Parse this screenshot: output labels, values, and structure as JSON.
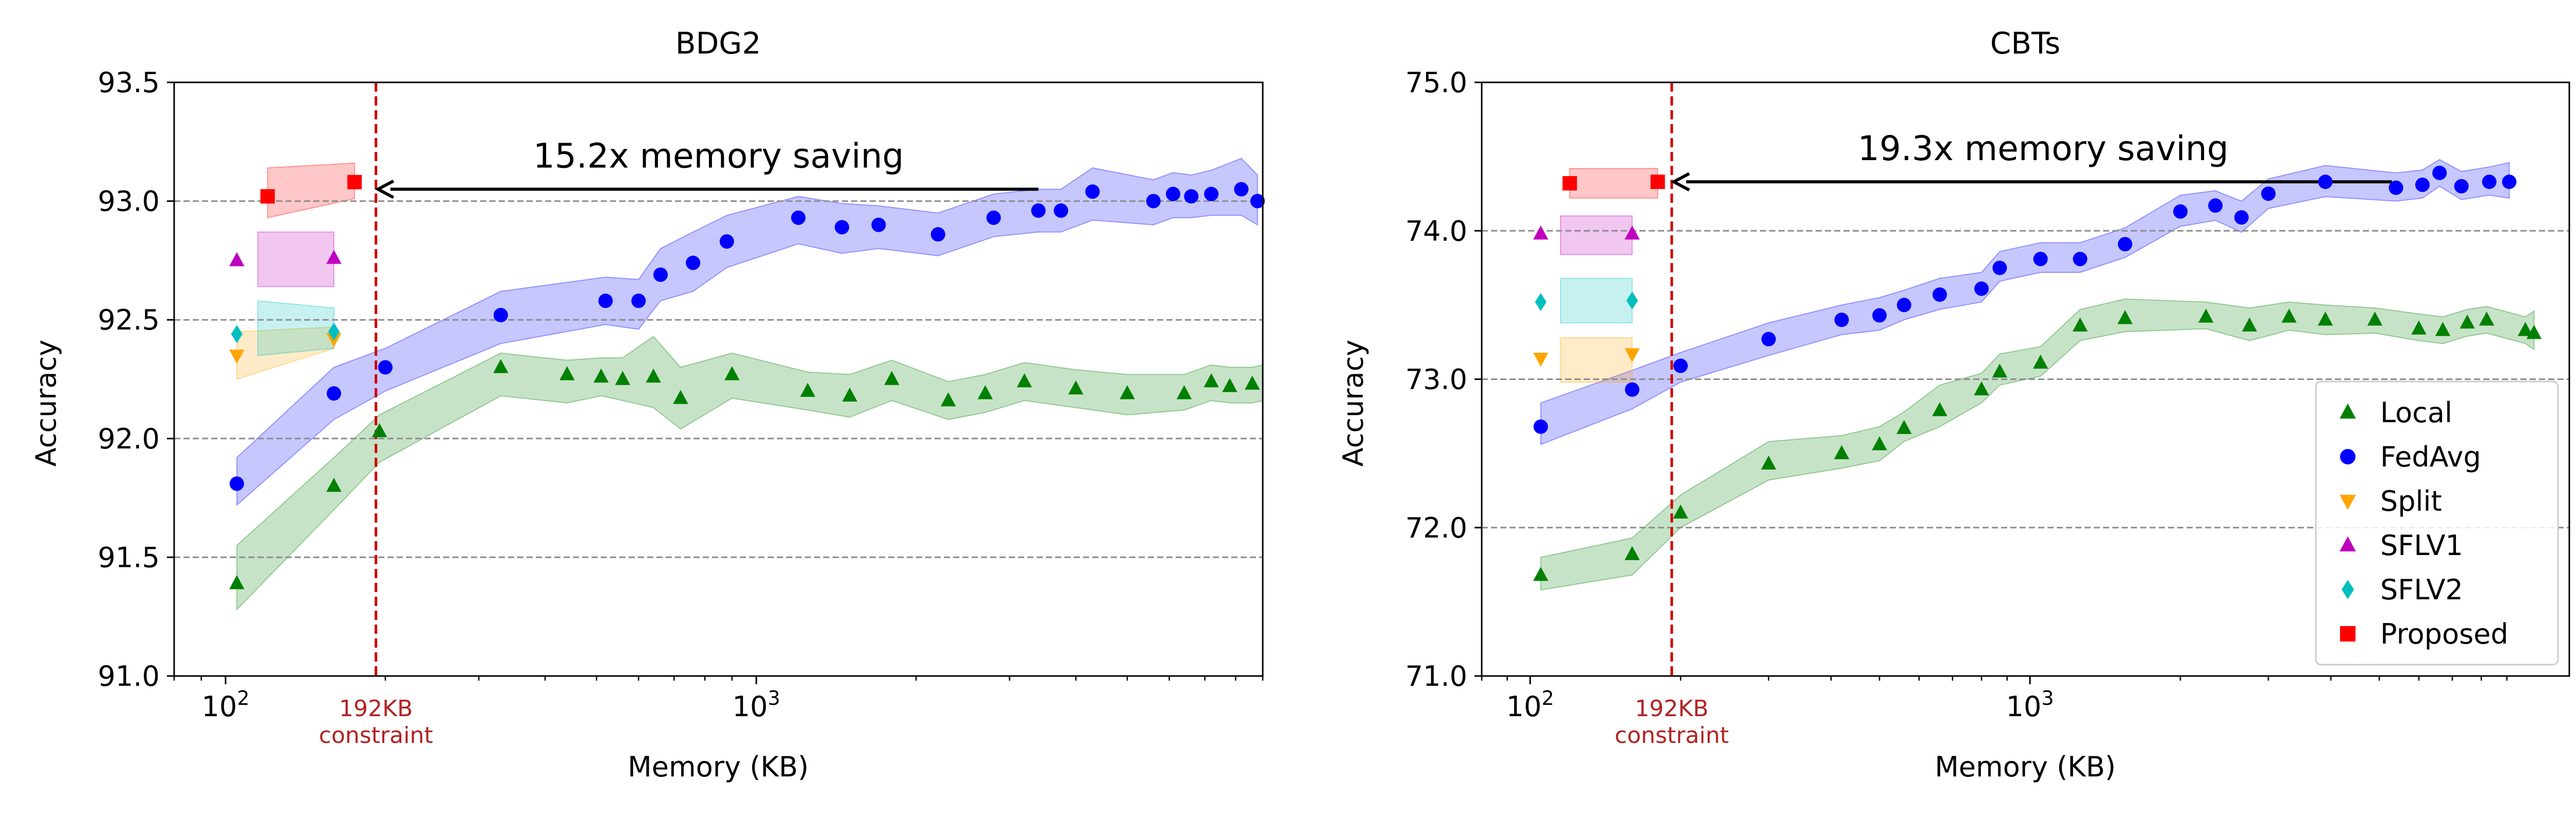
{
  "chart_data": [
    {
      "type": "scatter",
      "title": "BDG2",
      "xlabel": "Memory (KB)",
      "ylabel": "Accuracy",
      "xscale": "log",
      "xlim": [
        80,
        9000
      ],
      "ylim": [
        91.0,
        93.5
      ],
      "yticks": [
        91.0,
        91.5,
        92.0,
        92.5,
        93.0,
        93.5
      ],
      "ytick_labels": [
        "91.0",
        "91.5",
        "92.0",
        "92.5",
        "93.0",
        "93.5"
      ],
      "xticks": [
        {
          "value": 100,
          "base": "10",
          "exp": "2"
        },
        {
          "value": 1000,
          "base": "10",
          "exp": "3"
        }
      ],
      "grid": "horizontal dashed",
      "constraint": {
        "x": 192,
        "label_line1": "192KB",
        "label_line2": "constraint"
      },
      "annotation": {
        "text": "15.2x memory saving",
        "from_x": 3400,
        "to_x": 192,
        "y": 93.05
      },
      "series": [
        {
          "name": "Local",
          "key": "local",
          "color": "#008000",
          "marker": "triangle-up",
          "x": [
            105,
            160,
            195,
            330,
            440,
            510,
            560,
            640,
            720,
            900,
            1250,
            1500,
            1800,
            2300,
            2700,
            3200,
            4000,
            5000,
            6400,
            7200,
            7800,
            8600,
            9400,
            10200
          ],
          "y": [
            91.39,
            91.8,
            92.03,
            92.3,
            92.27,
            92.26,
            92.25,
            92.26,
            92.17,
            92.27,
            92.2,
            92.18,
            92.25,
            92.16,
            92.19,
            92.24,
            92.21,
            92.19,
            92.19,
            92.24,
            92.22,
            92.23,
            92.23,
            92.22
          ],
          "band_x": [
            105,
            160,
            195,
            330,
            440,
            510,
            560,
            640,
            720,
            900,
            1250,
            1500,
            1800,
            2300,
            2700,
            3200,
            4000,
            5000,
            6400,
            7200,
            7800,
            8600,
            9400,
            10200
          ],
          "band_lo": [
            91.28,
            91.7,
            91.9,
            92.18,
            92.15,
            92.18,
            92.16,
            92.13,
            92.04,
            92.17,
            92.12,
            92.09,
            92.16,
            92.08,
            92.11,
            92.16,
            92.13,
            92.1,
            92.12,
            92.16,
            92.15,
            92.15,
            92.16,
            92.14
          ],
          "band_hi": [
            91.55,
            91.92,
            92.1,
            92.36,
            92.33,
            92.34,
            92.34,
            92.43,
            92.3,
            92.36,
            92.28,
            92.27,
            92.33,
            92.24,
            92.27,
            92.32,
            92.29,
            92.27,
            92.27,
            92.31,
            92.3,
            92.3,
            92.31,
            92.3
          ]
        },
        {
          "name": "FedAvg",
          "key": "fedavg",
          "color": "#0000ff",
          "marker": "circle",
          "x": [
            105,
            160,
            200,
            330,
            520,
            600,
            660,
            760,
            880,
            1200,
            1450,
            1700,
            2200,
            2800,
            3400,
            3750,
            4300,
            5600,
            6100,
            6600,
            7200,
            8200,
            8800
          ],
          "y": [
            91.81,
            92.19,
            92.3,
            92.52,
            92.58,
            92.58,
            92.69,
            92.74,
            92.83,
            92.93,
            92.89,
            92.9,
            92.86,
            92.93,
            92.96,
            92.96,
            93.04,
            93.0,
            93.03,
            93.02,
            93.03,
            93.05,
            93.0
          ],
          "band_x": [
            105,
            160,
            200,
            330,
            520,
            600,
            660,
            760,
            880,
            1200,
            1450,
            1700,
            2200,
            2800,
            3400,
            3750,
            4300,
            5600,
            6100,
            6600,
            7200,
            8200,
            8800
          ],
          "band_lo": [
            91.72,
            92.08,
            92.2,
            92.4,
            92.48,
            92.46,
            92.58,
            92.62,
            92.72,
            92.82,
            92.78,
            92.8,
            92.77,
            92.85,
            92.87,
            92.87,
            92.92,
            92.9,
            92.93,
            92.93,
            92.94,
            92.94,
            92.9
          ],
          "band_hi": [
            91.92,
            92.3,
            92.38,
            92.62,
            92.68,
            92.67,
            92.8,
            92.87,
            92.94,
            93.02,
            92.99,
            92.98,
            92.95,
            93.03,
            93.05,
            93.05,
            93.14,
            93.09,
            93.12,
            93.11,
            93.13,
            93.18,
            93.11
          ]
        },
        {
          "name": "Split",
          "key": "split",
          "color": "#ffa500",
          "marker": "triangle-down",
          "x": [
            105,
            160
          ],
          "y": [
            92.35,
            92.42
          ],
          "band_x": [
            105,
            160
          ],
          "band_lo": [
            92.25,
            92.38
          ],
          "band_hi": [
            92.45,
            92.47
          ]
        },
        {
          "name": "SFLV1",
          "key": "sflv1",
          "color": "#bf00bf",
          "marker": "triangle-up",
          "x": [
            105,
            160
          ],
          "y": [
            92.75,
            92.76
          ],
          "band_x": [
            115,
            160
          ],
          "band_lo": [
            92.64,
            92.64
          ],
          "band_hi": [
            92.87,
            92.87
          ]
        },
        {
          "name": "SFLV2",
          "key": "sflv2",
          "color": "#00bfbf",
          "marker": "diamond",
          "x": [
            105,
            160
          ],
          "y": [
            92.44,
            92.45
          ],
          "band_x": [
            115,
            160
          ],
          "band_lo": [
            92.35,
            92.38
          ],
          "band_hi": [
            92.58,
            92.55
          ]
        },
        {
          "name": "Proposed",
          "key": "proposed",
          "color": "#ff0000",
          "marker": "square",
          "x": [
            120,
            175
          ],
          "y": [
            93.02,
            93.08
          ],
          "band_x": [
            120,
            175
          ],
          "band_lo": [
            92.93,
            93.01
          ],
          "band_hi": [
            93.14,
            93.16
          ]
        }
      ]
    },
    {
      "type": "scatter",
      "title": "CBTs",
      "xlabel": "Memory (KB)",
      "ylabel": "Accuracy",
      "xscale": "log",
      "xlim": [
        80,
        12000
      ],
      "ylim": [
        71.0,
        75.0
      ],
      "yticks": [
        71.0,
        72.0,
        73.0,
        74.0,
        75.0
      ],
      "ytick_labels": [
        "71.0",
        "72.0",
        "73.0",
        "74.0",
        "75.0"
      ],
      "xticks": [
        {
          "value": 100,
          "base": "10",
          "exp": "2"
        },
        {
          "value": 1000,
          "base": "10",
          "exp": "3"
        }
      ],
      "grid": "horizontal dashed",
      "constraint": {
        "x": 192,
        "label_line1": "192KB",
        "label_line2": "constraint"
      },
      "annotation": {
        "text": "19.3x memory saving",
        "from_x": 5300,
        "to_x": 192,
        "y": 74.33
      },
      "legend_position": "lower right",
      "series": [
        {
          "name": "Local",
          "key": "local",
          "color": "#008000",
          "marker": "triangle-up",
          "x": [
            105,
            160,
            200,
            300,
            420,
            500,
            560,
            660,
            800,
            870,
            1050,
            1260,
            1550,
            2250,
            2750,
            3300,
            3900,
            4900,
            6000,
            6700,
            7500,
            8200,
            9800,
            10200
          ],
          "y": [
            71.68,
            71.82,
            72.1,
            72.43,
            72.5,
            72.56,
            72.67,
            72.79,
            72.93,
            73.05,
            73.11,
            73.36,
            73.41,
            73.42,
            73.36,
            73.42,
            73.4,
            73.4,
            73.34,
            73.33,
            73.38,
            73.4,
            73.33,
            73.31
          ],
          "band_x": [
            105,
            160,
            200,
            300,
            420,
            500,
            560,
            660,
            800,
            870,
            1050,
            1260,
            1550,
            2250,
            2750,
            3300,
            3900,
            4900,
            6000,
            6700,
            7500,
            8200,
            9800,
            10200
          ],
          "band_lo": [
            71.58,
            71.68,
            72.0,
            72.32,
            72.4,
            72.45,
            72.58,
            72.68,
            72.84,
            72.96,
            73.02,
            73.26,
            73.32,
            73.34,
            73.26,
            73.33,
            73.3,
            73.31,
            73.26,
            73.24,
            73.29,
            73.31,
            73.24,
            73.2
          ],
          "band_hi": [
            71.8,
            71.93,
            72.22,
            72.58,
            72.62,
            72.68,
            72.78,
            72.96,
            73.04,
            73.17,
            73.22,
            73.47,
            73.54,
            73.52,
            73.48,
            73.52,
            73.5,
            73.48,
            73.44,
            73.42,
            73.47,
            73.49,
            73.42,
            73.46
          ]
        },
        {
          "name": "FedAvg",
          "key": "fedavg",
          "color": "#0000ff",
          "marker": "circle",
          "x": [
            105,
            160,
            200,
            300,
            420,
            500,
            560,
            660,
            800,
            870,
            1050,
            1260,
            1550,
            2000,
            2350,
            2650,
            3000,
            3900,
            5400,
            6100,
            6600,
            7300,
            8300,
            9100
          ],
          "y": [
            72.68,
            72.93,
            73.09,
            73.27,
            73.4,
            73.43,
            73.5,
            73.57,
            73.61,
            73.75,
            73.81,
            73.81,
            73.91,
            74.13,
            74.17,
            74.09,
            74.25,
            74.33,
            74.29,
            74.31,
            74.39,
            74.3,
            74.33,
            74.33
          ],
          "band_x": [
            105,
            160,
            200,
            300,
            420,
            500,
            560,
            660,
            800,
            870,
            1050,
            1260,
            1550,
            2000,
            2350,
            2650,
            3000,
            3900,
            5400,
            6100,
            6600,
            7300,
            8300,
            9100
          ],
          "band_lo": [
            72.56,
            72.8,
            72.98,
            73.16,
            73.3,
            73.33,
            73.4,
            73.47,
            73.52,
            73.66,
            73.72,
            73.72,
            73.82,
            74.03,
            74.07,
            73.99,
            74.15,
            74.23,
            74.2,
            74.22,
            74.3,
            74.21,
            74.24,
            74.22
          ],
          "band_hi": [
            72.84,
            73.06,
            73.18,
            73.38,
            73.5,
            73.55,
            73.6,
            73.68,
            73.72,
            73.86,
            73.92,
            73.92,
            74.02,
            74.24,
            74.27,
            74.2,
            74.35,
            74.44,
            74.39,
            74.41,
            74.48,
            74.4,
            74.43,
            74.46
          ]
        },
        {
          "name": "Split",
          "key": "split",
          "color": "#ffa500",
          "marker": "triangle-down",
          "x": [
            105,
            160
          ],
          "y": [
            73.14,
            73.17
          ],
          "band_x": [
            115,
            160
          ],
          "band_lo": [
            72.98,
            72.98
          ],
          "band_hi": [
            73.28,
            73.28
          ]
        },
        {
          "name": "SFLV1",
          "key": "sflv1",
          "color": "#bf00bf",
          "marker": "triangle-up",
          "x": [
            105,
            160
          ],
          "y": [
            73.98,
            73.98
          ],
          "band_x": [
            115,
            160
          ],
          "band_lo": [
            73.84,
            73.84
          ],
          "band_hi": [
            74.1,
            74.1
          ]
        },
        {
          "name": "SFLV2",
          "key": "sflv2",
          "color": "#00bfbf",
          "marker": "diamond",
          "x": [
            105,
            160
          ],
          "y": [
            73.52,
            73.53
          ],
          "band_x": [
            115,
            160
          ],
          "band_lo": [
            73.38,
            73.38
          ],
          "band_hi": [
            73.68,
            73.68
          ]
        },
        {
          "name": "Proposed",
          "key": "proposed",
          "color": "#ff0000",
          "marker": "square",
          "x": [
            120,
            180
          ],
          "y": [
            74.32,
            74.33
          ],
          "band_x": [
            120,
            180
          ],
          "band_lo": [
            74.22,
            74.22
          ],
          "band_hi": [
            74.42,
            74.42
          ]
        }
      ]
    }
  ]
}
